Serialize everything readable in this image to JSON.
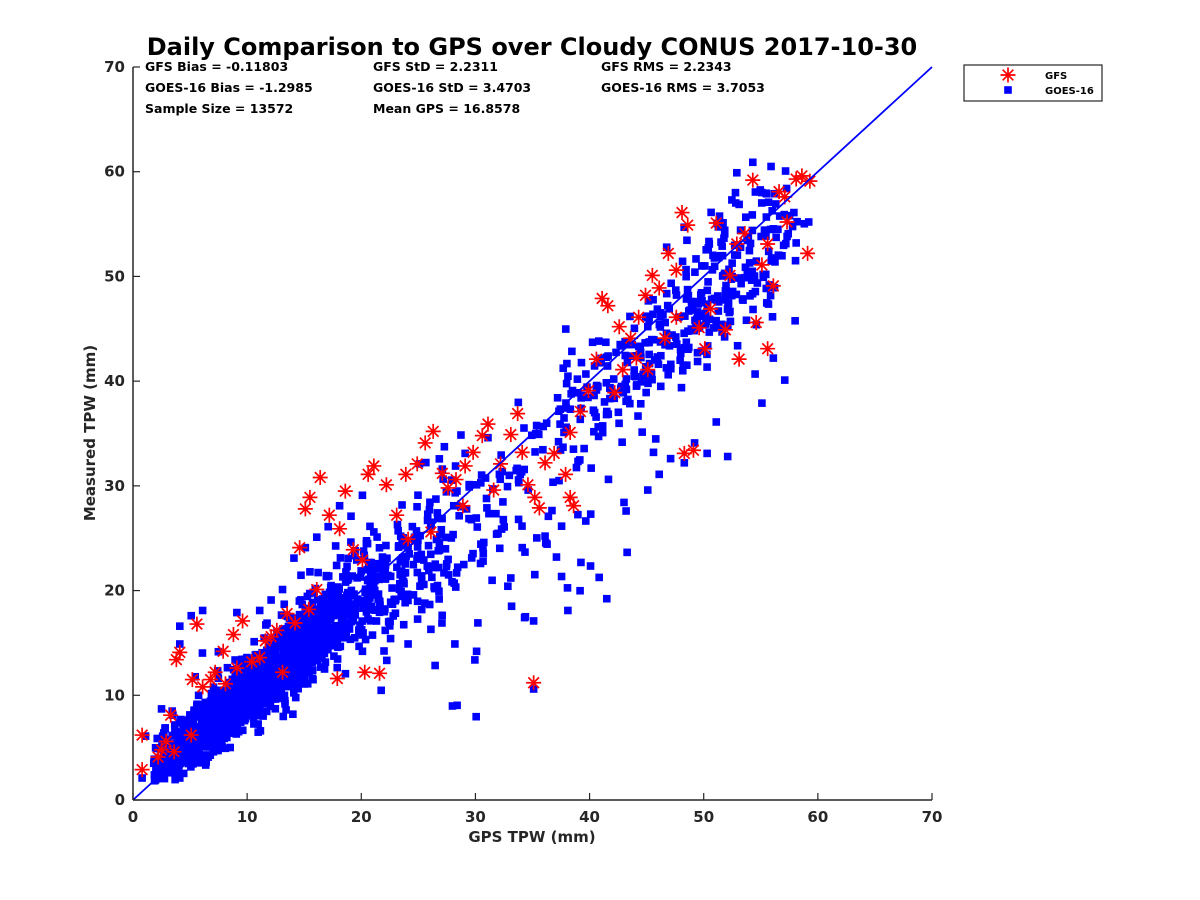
{
  "chart_data": {
    "type": "scatter",
    "title": "Daily Comparison to GPS over Cloudy CONUS 2017-10-30",
    "xlabel": "GPS TPW (mm)",
    "ylabel": "Measured TPW (mm)",
    "xlim": [
      0,
      70
    ],
    "ylim": [
      0,
      70
    ],
    "xticks": [
      "0",
      "10",
      "20",
      "30",
      "40",
      "50",
      "60",
      "70"
    ],
    "yticks": [
      "0",
      "10",
      "20",
      "30",
      "40",
      "50",
      "60",
      "70"
    ],
    "grid": false,
    "legend_position": "outside-top-right",
    "stats": [
      [
        "GFS Bias = -0.11803",
        "GFS StD = 2.2311",
        "GFS RMS = 2.2343"
      ],
      [
        "GOES-16 Bias = -1.2985",
        "GOES-16 StD = 3.4703",
        "GOES-16 RMS = 3.7053"
      ],
      [
        "Sample Size = 13572",
        "Mean GPS = 16.8578"
      ]
    ],
    "reference_line": {
      "name": "1:1",
      "x": [
        0,
        70
      ],
      "y": [
        0,
        70
      ],
      "color": "#0000ff"
    },
    "series": [
      {
        "name": "GFS",
        "marker": "asterisk",
        "color": "#ff0000",
        "points": [
          [
            0.8,
            2.9
          ],
          [
            0.8,
            6.2
          ],
          [
            2.2,
            4.1
          ],
          [
            2.5,
            4.8
          ],
          [
            2.9,
            5.6
          ],
          [
            3.3,
            8.1
          ],
          [
            3.8,
            13.4
          ],
          [
            4.1,
            14.1
          ],
          [
            5.6,
            16.8
          ],
          [
            5.2,
            11.5
          ],
          [
            6.1,
            10.8
          ],
          [
            6.8,
            11.5
          ],
          [
            7.2,
            12.2
          ],
          [
            7.9,
            14.2
          ],
          [
            8.8,
            15.8
          ],
          [
            9.6,
            17.1
          ],
          [
            10.4,
            13.2
          ],
          [
            11.6,
            15.2
          ],
          [
            12.6,
            16.2
          ],
          [
            13.5,
            17.8
          ],
          [
            14.2,
            16.9
          ],
          [
            15.4,
            18.2
          ],
          [
            16.1,
            20.1
          ],
          [
            14.6,
            24.1
          ],
          [
            15.1,
            27.8
          ],
          [
            15.5,
            28.9
          ],
          [
            16.4,
            30.8
          ],
          [
            17.2,
            27.2
          ],
          [
            18.1,
            25.9
          ],
          [
            18.6,
            29.5
          ],
          [
            19.3,
            23.9
          ],
          [
            20.1,
            22.9
          ],
          [
            20.6,
            31.1
          ],
          [
            21.1,
            31.9
          ],
          [
            22.2,
            30.1
          ],
          [
            23.1,
            27.2
          ],
          [
            23.9,
            31.1
          ],
          [
            24.9,
            32.1
          ],
          [
            25.6,
            34.1
          ],
          [
            26.3,
            35.2
          ],
          [
            27.1,
            31.2
          ],
          [
            27.6,
            29.8
          ],
          [
            28.3,
            30.6
          ],
          [
            29.1,
            31.9
          ],
          [
            29.8,
            33.2
          ],
          [
            30.6,
            34.8
          ],
          [
            31.1,
            35.9
          ],
          [
            32.2,
            32.1
          ],
          [
            33.1,
            34.9
          ],
          [
            33.7,
            36.9
          ],
          [
            34.1,
            33.2
          ],
          [
            34.6,
            30.1
          ],
          [
            35.2,
            28.9
          ],
          [
            35.6,
            27.9
          ],
          [
            36.1,
            32.2
          ],
          [
            36.9,
            33.1
          ],
          [
            37.9,
            31.1
          ],
          [
            38.3,
            28.9
          ],
          [
            38.6,
            28.1
          ],
          [
            38.3,
            35.1
          ],
          [
            39.2,
            37.1
          ],
          [
            39.9,
            39.1
          ],
          [
            40.6,
            42.1
          ],
          [
            41.1,
            47.9
          ],
          [
            41.6,
            47.2
          ],
          [
            42.2,
            38.9
          ],
          [
            42.9,
            41.1
          ],
          [
            43.6,
            44.1
          ],
          [
            44.3,
            46.1
          ],
          [
            44.9,
            48.2
          ],
          [
            45.5,
            50.1
          ],
          [
            46.1,
            48.9
          ],
          [
            46.9,
            52.2
          ],
          [
            47.6,
            50.6
          ],
          [
            48.1,
            56.1
          ],
          [
            48.6,
            54.9
          ],
          [
            48.3,
            33.1
          ],
          [
            49.1,
            33.4
          ],
          [
            49.6,
            45.1
          ],
          [
            50.1,
            43.1
          ],
          [
            50.6,
            46.9
          ],
          [
            51.1,
            55.1
          ],
          [
            51.9,
            44.9
          ],
          [
            52.3,
            50.1
          ],
          [
            52.9,
            53.1
          ],
          [
            53.6,
            54.1
          ],
          [
            54.3,
            59.2
          ],
          [
            55.1,
            51.1
          ],
          [
            55.6,
            43.1
          ],
          [
            56.1,
            49.1
          ],
          [
            56.6,
            58.1
          ],
          [
            57.3,
            55.2
          ],
          [
            58.1,
            59.3
          ],
          [
            58.6,
            59.6
          ],
          [
            59.1,
            52.2
          ],
          [
            59.3,
            59.1
          ],
          [
            35.1,
            11.2
          ],
          [
            17.9,
            11.6
          ],
          [
            20.3,
            12.2
          ],
          [
            21.6,
            12.1
          ],
          [
            8.1,
            11.1
          ],
          [
            9.1,
            12.6
          ],
          [
            11.1,
            13.6
          ],
          [
            12.1,
            15.6
          ],
          [
            13.1,
            12.2
          ],
          [
            24.1,
            24.9
          ],
          [
            26.1,
            25.6
          ],
          [
            28.9,
            28.1
          ],
          [
            31.6,
            29.6
          ],
          [
            45.1,
            41.1
          ],
          [
            46.6,
            44.1
          ],
          [
            47.6,
            46.1
          ],
          [
            53.1,
            42.1
          ],
          [
            54.6,
            45.6
          ],
          [
            55.6,
            53.1
          ],
          [
            57.1,
            57.6
          ],
          [
            42.6,
            45.2
          ],
          [
            44.1,
            42.2
          ],
          [
            3.6,
            4.6
          ],
          [
            5.1,
            6.2
          ]
        ]
      },
      {
        "name": "GOES-16",
        "marker": "square",
        "color": "#0000ff",
        "clusters": [
          {
            "cx": 7.5,
            "cy": 7.8,
            "sx": 4.0,
            "sy": 3.6,
            "n": 850,
            "rho": 0.93
          },
          {
            "cx": 14.0,
            "cy": 14.0,
            "sx": 4.2,
            "sy": 4.3,
            "n": 650,
            "rho": 0.9
          },
          {
            "cx": 22.0,
            "cy": 21.0,
            "sx": 6.5,
            "sy": 6.0,
            "n": 300,
            "rho": 0.82
          },
          {
            "cx": 33.0,
            "cy": 24.0,
            "sx": 4.5,
            "sy": 6.0,
            "n": 60,
            "rho": 0.3
          },
          {
            "cx": 41.5,
            "cy": 38.5,
            "sx": 3.0,
            "sy": 3.6,
            "n": 90,
            "rho": 0.55
          },
          {
            "cx": 48.5,
            "cy": 45.5,
            "sx": 4.5,
            "sy": 4.0,
            "n": 180,
            "rho": 0.65
          },
          {
            "cx": 53.0,
            "cy": 52.0,
            "sx": 3.0,
            "sy": 3.8,
            "n": 110,
            "rho": 0.55
          }
        ],
        "points": [
          [
            35.1,
            10.6
          ],
          [
            40.1,
            27.3
          ],
          [
            43.2,
            27.6
          ],
          [
            45.6,
            33.2
          ],
          [
            47.1,
            32.6
          ],
          [
            48.3,
            32.2
          ],
          [
            50.3,
            33.1
          ],
          [
            52.1,
            32.8
          ],
          [
            51.1,
            36.1
          ],
          [
            55.1,
            37.9
          ],
          [
            57.1,
            40.1
          ],
          [
            56.1,
            42.2
          ],
          [
            45.1,
            29.6
          ],
          [
            46.1,
            31.1
          ],
          [
            49.2,
            34.1
          ],
          [
            54.3,
            60.9
          ],
          [
            55.9,
            60.5
          ],
          [
            52.9,
            59.9
          ],
          [
            56.2,
            57.9
          ],
          [
            57.9,
            56.1
          ],
          [
            59.2,
            55.2
          ],
          [
            58.1,
            53.2
          ],
          [
            30.1,
            14.2
          ],
          [
            28.2,
            14.9
          ],
          [
            26.1,
            16.3
          ],
          [
            24.1,
            14.9
          ],
          [
            22.1,
            16.2
          ],
          [
            20.1,
            14.2
          ],
          [
            38.1,
            18.1
          ],
          [
            35.1,
            17.1
          ],
          [
            33.1,
            21.2
          ],
          [
            36.1,
            25.2
          ],
          [
            37.1,
            23.2
          ],
          [
            34.1,
            24.1
          ],
          [
            4.1,
            16.6
          ],
          [
            4.1,
            14.9
          ],
          [
            5.1,
            17.6
          ],
          [
            6.1,
            18.1
          ],
          [
            2.5,
            8.7
          ],
          [
            2.6,
            6.1
          ],
          [
            3.1,
            2.6
          ],
          [
            4.1,
            2.1
          ],
          [
            0.8,
            2.1
          ],
          [
            1.1,
            6.1
          ],
          [
            3.5,
            8.1
          ],
          [
            9.1,
            17.9
          ],
          [
            11.1,
            18.1
          ],
          [
            12.1,
            19.1
          ],
          [
            13.1,
            20.1
          ],
          [
            14.1,
            23.1
          ],
          [
            15.1,
            24.1
          ],
          [
            16.1,
            25.1
          ],
          [
            17.1,
            26.1
          ],
          [
            18.1,
            28.1
          ],
          [
            19.1,
            27.1
          ],
          [
            20.1,
            29.1
          ],
          [
            21.1,
            25.6
          ],
          [
            25.1,
            32.1
          ],
          [
            27.1,
            31.6
          ],
          [
            29.1,
            33.1
          ],
          [
            31.1,
            34.6
          ],
          [
            32.1,
            31.1
          ],
          [
            30.1,
            30.1
          ],
          [
            28.1,
            28.1
          ],
          [
            26.1,
            26.1
          ],
          [
            24.1,
            24.1
          ],
          [
            22.1,
            22.1
          ],
          [
            18.1,
            18.1
          ],
          [
            16.1,
            16.1
          ]
        ]
      }
    ]
  }
}
